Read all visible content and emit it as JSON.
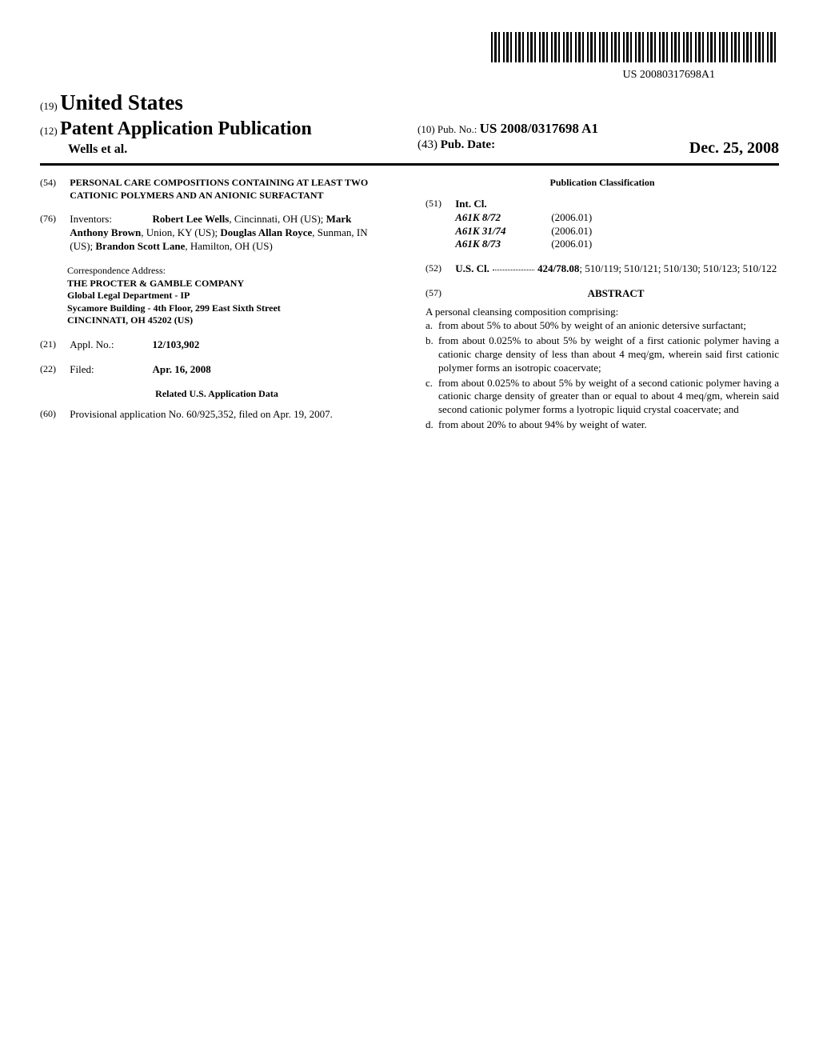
{
  "barcode_text": "US 20080317698A1",
  "header": {
    "country_num": "(19)",
    "country": "United States",
    "pub_num": "(12)",
    "pub_type": "Patent Application Publication",
    "authors": "Wells et al.",
    "pubno_num": "(10)",
    "pubno_label": "Pub. No.:",
    "pubno": "US 2008/0317698 A1",
    "pubdate_num": "(43)",
    "pubdate_label": "Pub. Date:",
    "pubdate": "Dec. 25, 2008"
  },
  "left": {
    "title_num": "(54)",
    "title": "PERSONAL CARE COMPOSITIONS CONTAINING AT LEAST TWO CATIONIC POLYMERS AND AN ANIONIC SURFACTANT",
    "inventors_num": "(76)",
    "inventors_label": "Inventors:",
    "inventors_html": "Robert Lee Wells, Cincinnati, OH (US); Mark Anthony Brown, Union, KY (US); Douglas Allan Royce, Sunman, IN (US); Brandon Scott Lane, Hamilton, OH (US)",
    "inventors": [
      {
        "name": "Robert Lee Wells",
        "loc": ", Cincinnati, OH (US); "
      },
      {
        "name": "Mark Anthony Brown",
        "loc": ", Union, KY (US); "
      },
      {
        "name": "Douglas Allan Royce",
        "loc": ", Sunman, IN (US); "
      },
      {
        "name": "Brandon Scott Lane",
        "loc": ", Hamilton, OH (US)"
      }
    ],
    "corr_label": "Correspondence Address:",
    "corr_lines": [
      "THE PROCTER & GAMBLE COMPANY",
      "Global Legal Department - IP",
      "Sycamore Building - 4th Floor, 299 East Sixth Street",
      "CINCINNATI, OH 45202 (US)"
    ],
    "applno_num": "(21)",
    "applno_label": "Appl. No.:",
    "applno": "12/103,902",
    "filed_num": "(22)",
    "filed_label": "Filed:",
    "filed": "Apr. 16, 2008",
    "related_heading": "Related U.S. Application Data",
    "prov_num": "(60)",
    "prov_text": "Provisional application No. 60/925,352, filed on Apr. 19, 2007."
  },
  "right": {
    "pubclass_heading": "Publication Classification",
    "intcl_num": "(51)",
    "intcl_label": "Int. Cl.",
    "intcl": [
      {
        "code": "A61K 8/72",
        "year": "(2006.01)"
      },
      {
        "code": "A61K 31/74",
        "year": "(2006.01)"
      },
      {
        "code": "A61K 8/73",
        "year": "(2006.01)"
      }
    ],
    "uscl_num": "(52)",
    "uscl_label": "U.S. Cl.",
    "uscl_main": "424/78.08",
    "uscl_rest": "; 510/119; 510/121; 510/130; 510/123; 510/122",
    "abstract_num": "(57)",
    "abstract_heading": "ABSTRACT",
    "abstract_intro": "A personal cleansing composition comprising:",
    "abstract_items": [
      {
        "letter": "a.",
        "text": "from about 5% to about 50% by weight of an anionic detersive surfactant;"
      },
      {
        "letter": "b.",
        "text": "from about 0.025% to about 5% by weight of a first cationic polymer having a cationic charge density of less than about 4 meq/gm, wherein said first cationic polymer forms an isotropic coacervate;"
      },
      {
        "letter": "c.",
        "text": "from about 0.025% to about 5% by weight of a second cationic polymer having a cationic charge density of greater than or equal to about 4 meq/gm, wherein said second cationic polymer forms a lyotropic liquid crystal coacervate; and"
      },
      {
        "letter": "d.",
        "text": "from about 20% to about 94% by weight of water."
      }
    ]
  }
}
